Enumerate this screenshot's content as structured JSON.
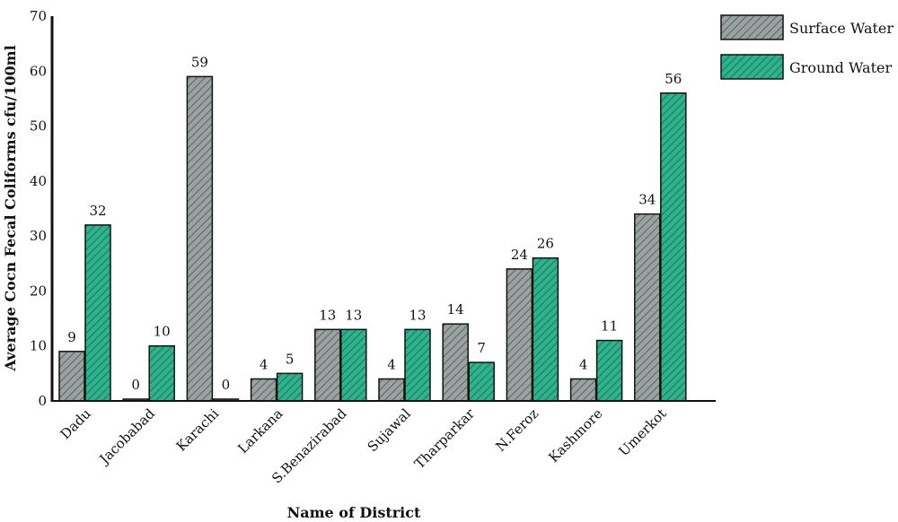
{
  "chart_data": {
    "type": "bar",
    "categories": [
      "Dadu",
      "Jacobabad",
      "Karachi",
      "Larkana",
      "S.Benazirabad",
      "Sujawal",
      "Tharparkar",
      "N.Feroz",
      "Kashmore",
      "Umerkot"
    ],
    "series": [
      {
        "name": "Surface Water",
        "values": [
          9,
          0,
          59,
          4,
          13,
          4,
          14,
          24,
          4,
          34
        ],
        "labels": [
          "9",
          "0",
          "59",
          "4",
          "13",
          "4",
          "14",
          "24",
          "4",
          "34"
        ],
        "color": "#9aa3a1"
      },
      {
        "name": "Ground Water",
        "values": [
          32,
          10,
          0,
          5,
          13,
          13,
          7,
          26,
          11,
          56
        ],
        "labels": [
          "32",
          "10",
          "0",
          "5",
          "13",
          "13",
          "7",
          "26",
          "11",
          "56"
        ],
        "color": "#2fb38c"
      }
    ],
    "title": "",
    "xlabel": "Name of District",
    "ylabel": "Average Cocn Fecal Coliforms cfu/100ml",
    "ylim": [
      0,
      70
    ],
    "yticks": [
      "0",
      "10",
      "20",
      "30",
      "40",
      "50",
      "60",
      "70"
    ],
    "grid": false,
    "legend_position": "top-right"
  }
}
